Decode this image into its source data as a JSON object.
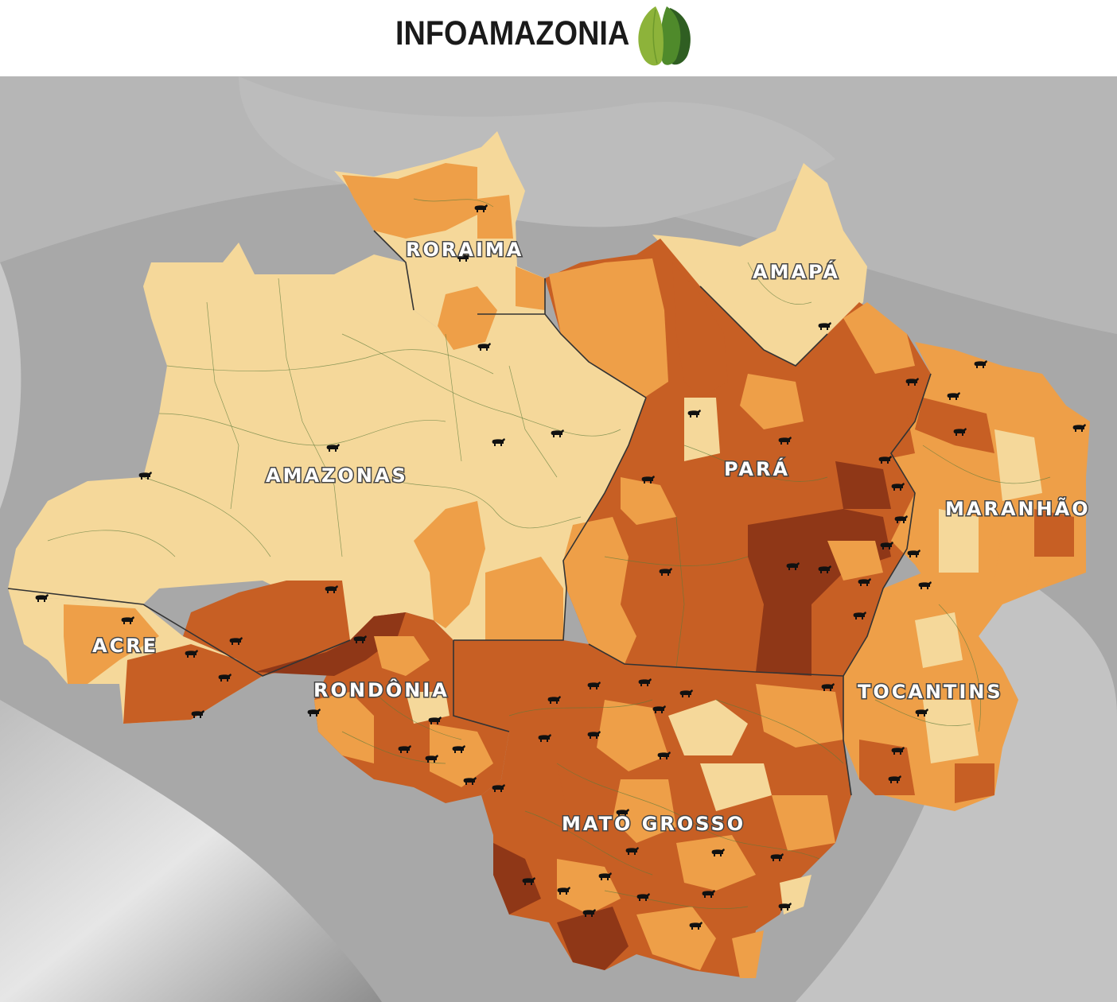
{
  "brand": {
    "name": "INFOAMAZONIA",
    "logo_icon": "leaf-logo-icon",
    "colors": {
      "leaf_light": "#8db33a",
      "leaf_mid": "#4f8a2b",
      "leaf_dark": "#2f5e22",
      "text": "#1a1a1a"
    }
  },
  "map": {
    "basemap": "grayscale-relief",
    "choropleth_colors": [
      "#f5d89a",
      "#ee9f48",
      "#c75f24",
      "#8f3717"
    ],
    "marker_icon": "cattle-icon",
    "states": [
      {
        "id": "roraima",
        "label": "RORAIMA"
      },
      {
        "id": "amapa",
        "label": "AMAPÁ"
      },
      {
        "id": "amazonas",
        "label": "AMAZONAS"
      },
      {
        "id": "para",
        "label": "PARÁ"
      },
      {
        "id": "maranhao",
        "label": "MARANHÃO"
      },
      {
        "id": "acre",
        "label": "ACRE"
      },
      {
        "id": "rondonia",
        "label": "RONDÔNIA"
      },
      {
        "id": "tocantins",
        "label": "TOCANTINS"
      },
      {
        "id": "mato-grosso",
        "label": "MATO GROSSO"
      }
    ]
  }
}
